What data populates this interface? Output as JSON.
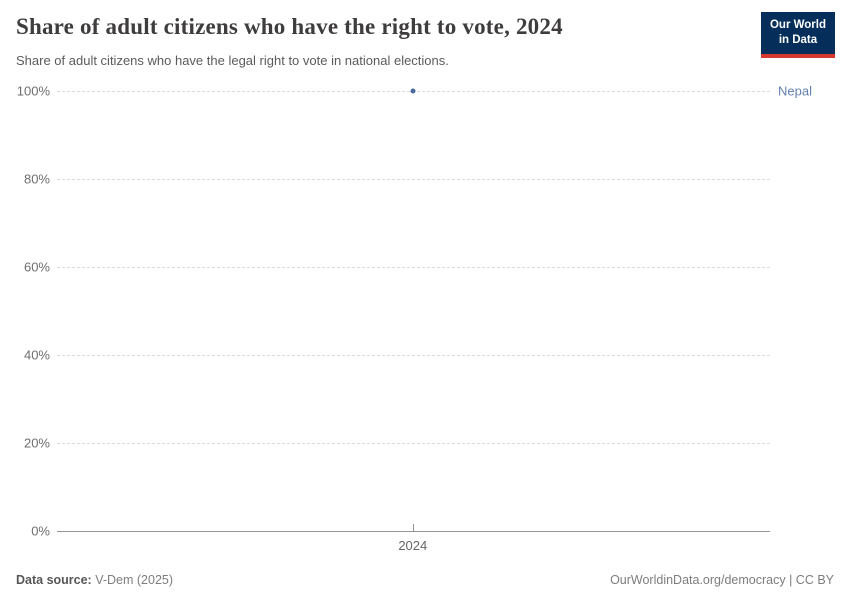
{
  "header": {
    "title": "Share of adult citizens who have the right to vote, 2024",
    "subtitle": "Share of adult citizens who have the legal right to vote in national elections.",
    "logo_line1": "Our World",
    "logo_line2": "in Data"
  },
  "chart_data": {
    "type": "scatter",
    "title": "Share of adult citizens who have the right to vote, 2024",
    "x": [
      2024
    ],
    "series": [
      {
        "name": "Nepal",
        "values": [
          100
        ],
        "color": "#4b699b",
        "label_color": "#6482af"
      }
    ],
    "xlabel": "",
    "ylabel": "",
    "ylim": [
      0,
      100
    ],
    "yticks": [
      {
        "value": 0,
        "label": "0%"
      },
      {
        "value": 20,
        "label": "20%"
      },
      {
        "value": 40,
        "label": "40%"
      },
      {
        "value": 60,
        "label": "60%"
      },
      {
        "value": 80,
        "label": "80%"
      },
      {
        "value": 100,
        "label": "100%"
      }
    ],
    "xticks": [
      {
        "value": 2024,
        "label": "2024",
        "frac": 0.499
      }
    ],
    "grid": "horizontal-dashed",
    "legend_position": "right-of-plot"
  },
  "footer": {
    "source_label": "Data source:",
    "source_value": "V-Dem (2025)",
    "license": "OurWorldinData.org/democracy | CC BY"
  },
  "colors": {
    "accent_navy": "#052e5a",
    "accent_red": "#d6382e",
    "gridline": "#dcdcdc",
    "axis": "#949494",
    "tick_label": "#6e6e6e",
    "title_text": "#3e3c3c",
    "subtitle_text": "#5b5b5b",
    "footer_text": "#7d7d7d"
  }
}
